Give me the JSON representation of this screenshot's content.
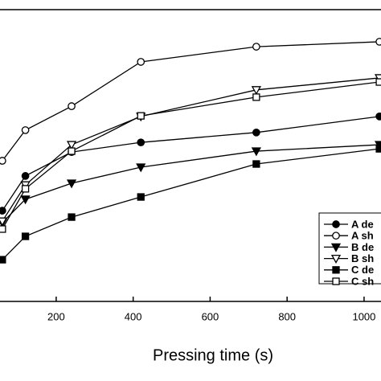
{
  "chart_data": {
    "type": "line",
    "x_label": "Pressing time (s)",
    "x": [
      60,
      120,
      240,
      420,
      720,
      1040
    ],
    "xlim": [
      54,
      1044
    ],
    "xticks": [
      200,
      400,
      600,
      800,
      1000
    ],
    "ylim": [
      0,
      100
    ],
    "series": [
      {
        "name": "A de",
        "color": "#000000",
        "marker": "circle",
        "filled": true,
        "values": [
          31.1,
          43.0,
          51.2,
          54.5,
          57.9,
          63.4
        ]
      },
      {
        "name": "A sh",
        "color": "#000000",
        "marker": "circle",
        "filled": false,
        "values": [
          48.2,
          58.7,
          66.9,
          82.1,
          87.3,
          89.0
        ]
      },
      {
        "name": "B de",
        "color": "#000000",
        "marker": "triangle-down",
        "filled": true,
        "values": [
          27.0,
          35.0,
          40.5,
          46.0,
          51.5,
          53.7
        ]
      },
      {
        "name": "B sh",
        "color": "#000000",
        "marker": "triangle-down",
        "filled": false,
        "values": [
          27.5,
          39.9,
          53.7,
          63.4,
          72.5,
          76.6
        ]
      },
      {
        "name": "C de",
        "color": "#000000",
        "marker": "square",
        "filled": true,
        "values": [
          14.3,
          22.3,
          28.9,
          35.8,
          47.1,
          52.3
        ]
      },
      {
        "name": "C sh",
        "color": "#000000",
        "marker": "square",
        "filled": false,
        "values": [
          24.8,
          38.6,
          51.5,
          63.6,
          70.0,
          75.2
        ]
      }
    ],
    "legend": "lower right"
  }
}
